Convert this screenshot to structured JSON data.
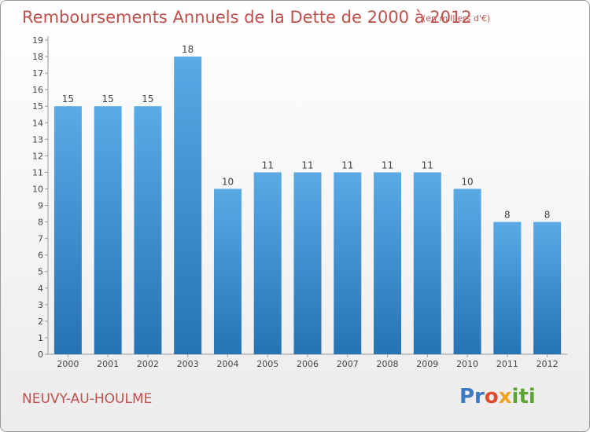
{
  "header": {
    "title": "Remboursements Annuels de la Dette de 2000 à 2012",
    "unit": "(en milliers d'€)"
  },
  "footer": {
    "commune": "NEUVY-AU-HOULME",
    "logo": "Proxiti"
  },
  "colors": {
    "bar_light": "#5aaae6",
    "bar_dark": "#2573b3",
    "title": "#c0504d"
  },
  "chart_data": {
    "type": "bar",
    "title": "Remboursements Annuels de la Dette de 2000 à 2012",
    "xlabel": "",
    "ylabel": "",
    "categories": [
      "2000",
      "2001",
      "2002",
      "2003",
      "2004",
      "2005",
      "2006",
      "2007",
      "2008",
      "2009",
      "2010",
      "2011",
      "2012"
    ],
    "values": [
      15,
      15,
      15,
      18,
      10,
      11,
      11,
      11,
      11,
      11,
      10,
      8,
      8
    ],
    "ylim": [
      0,
      19
    ],
    "yticks": [
      "0",
      "1",
      "2",
      "3",
      "4",
      "5",
      "6",
      "7",
      "8",
      "9",
      "10",
      "11",
      "12",
      "13",
      "14",
      "15",
      "16",
      "17",
      "18",
      "19"
    ],
    "grid": false,
    "legend": "none"
  }
}
